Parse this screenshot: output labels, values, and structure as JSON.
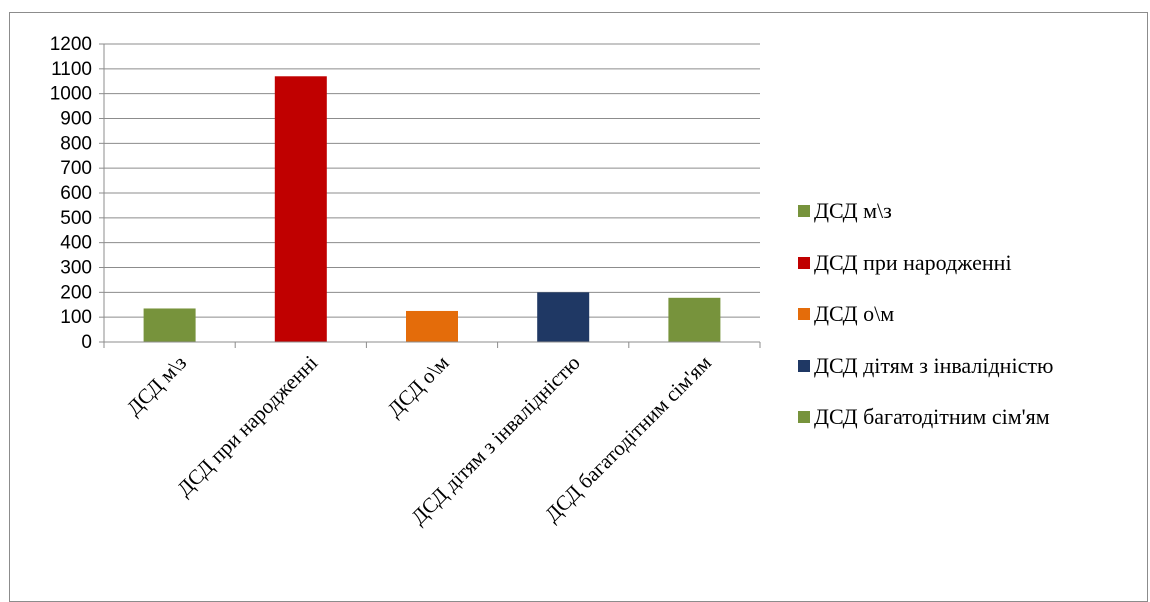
{
  "chart_data": {
    "type": "bar",
    "title": "",
    "xlabel": "",
    "ylabel": "",
    "ylim": [
      0,
      1200
    ],
    "yticks": [
      0,
      100,
      200,
      300,
      400,
      500,
      600,
      700,
      800,
      900,
      1000,
      1100,
      1200
    ],
    "grid": true,
    "legend_position": "right",
    "categories": [
      "ДСД м\\з",
      "ДСД при народженні",
      "ДСД о\\м",
      "ДСД дітям з інвалідністю",
      "ДСД багатодітним сім'ям"
    ],
    "values": [
      135,
      1070,
      125,
      200,
      178
    ],
    "colors": [
      "#77933c",
      "#c00000",
      "#e46c0a",
      "#1f3864",
      "#77933c"
    ],
    "legend": [
      {
        "label": "ДСД м\\з",
        "color": "#77933c"
      },
      {
        "label": "ДСД при народженні",
        "color": "#c00000"
      },
      {
        "label": "ДСД о\\м",
        "color": "#e46c0a"
      },
      {
        "label": " ДСД дітям з інвалідністю",
        "color": "#1f3864"
      },
      {
        "label": "ДСД багатодітним сім'ям",
        "color": "#77933c"
      }
    ]
  }
}
